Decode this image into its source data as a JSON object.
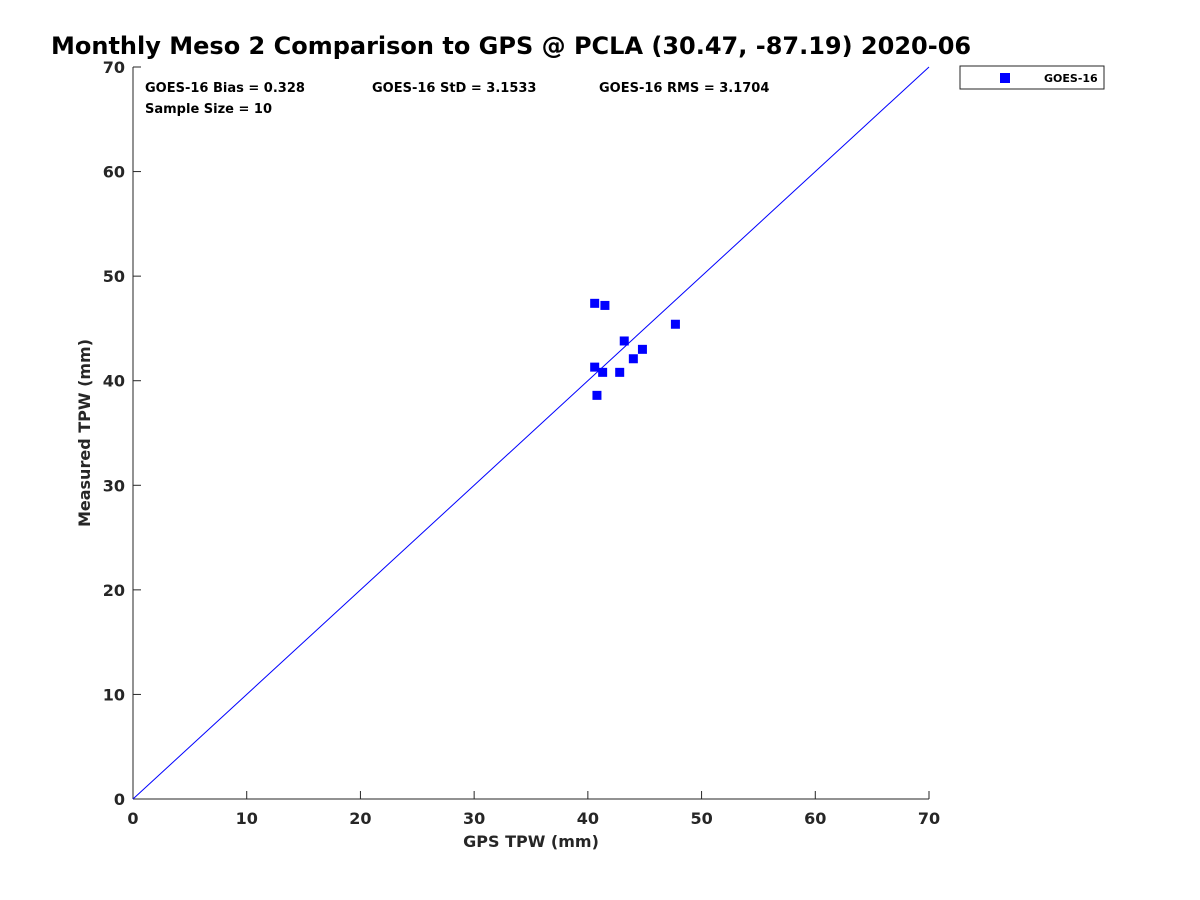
{
  "chart_data": {
    "type": "scatter",
    "title": "Monthly Meso 2 Comparison to GPS @ PCLA (30.47, -87.19) 2020-06",
    "xlabel": "GPS TPW (mm)",
    "ylabel": "Measured TPW (mm)",
    "xlim": [
      0,
      70
    ],
    "ylim": [
      0,
      70
    ],
    "xticks": [
      0,
      10,
      20,
      30,
      40,
      50,
      60,
      70
    ],
    "yticks": [
      0,
      10,
      20,
      30,
      40,
      50,
      60,
      70
    ],
    "grid": false,
    "legend_position": "outside top-right",
    "reference_line": {
      "x": [
        0,
        70
      ],
      "y": [
        0,
        70
      ],
      "color": "#0000ff"
    },
    "series": [
      {
        "name": "GOES-16",
        "color": "#0000ff",
        "marker": "square",
        "points": [
          {
            "x": 40.6,
            "y": 47.4
          },
          {
            "x": 41.5,
            "y": 47.2
          },
          {
            "x": 47.7,
            "y": 45.4
          },
          {
            "x": 43.2,
            "y": 43.8
          },
          {
            "x": 44.8,
            "y": 43.0
          },
          {
            "x": 44.0,
            "y": 42.1
          },
          {
            "x": 40.6,
            "y": 41.3
          },
          {
            "x": 41.3,
            "y": 40.8
          },
          {
            "x": 42.8,
            "y": 40.8
          },
          {
            "x": 40.8,
            "y": 38.6
          }
        ]
      }
    ],
    "annotations": {
      "bias": "GOES-16 Bias = 0.328",
      "std": "GOES-16 StD = 3.1533",
      "rms": "GOES-16 RMS = 3.1704",
      "sample_size": "Sample Size = 10"
    }
  }
}
